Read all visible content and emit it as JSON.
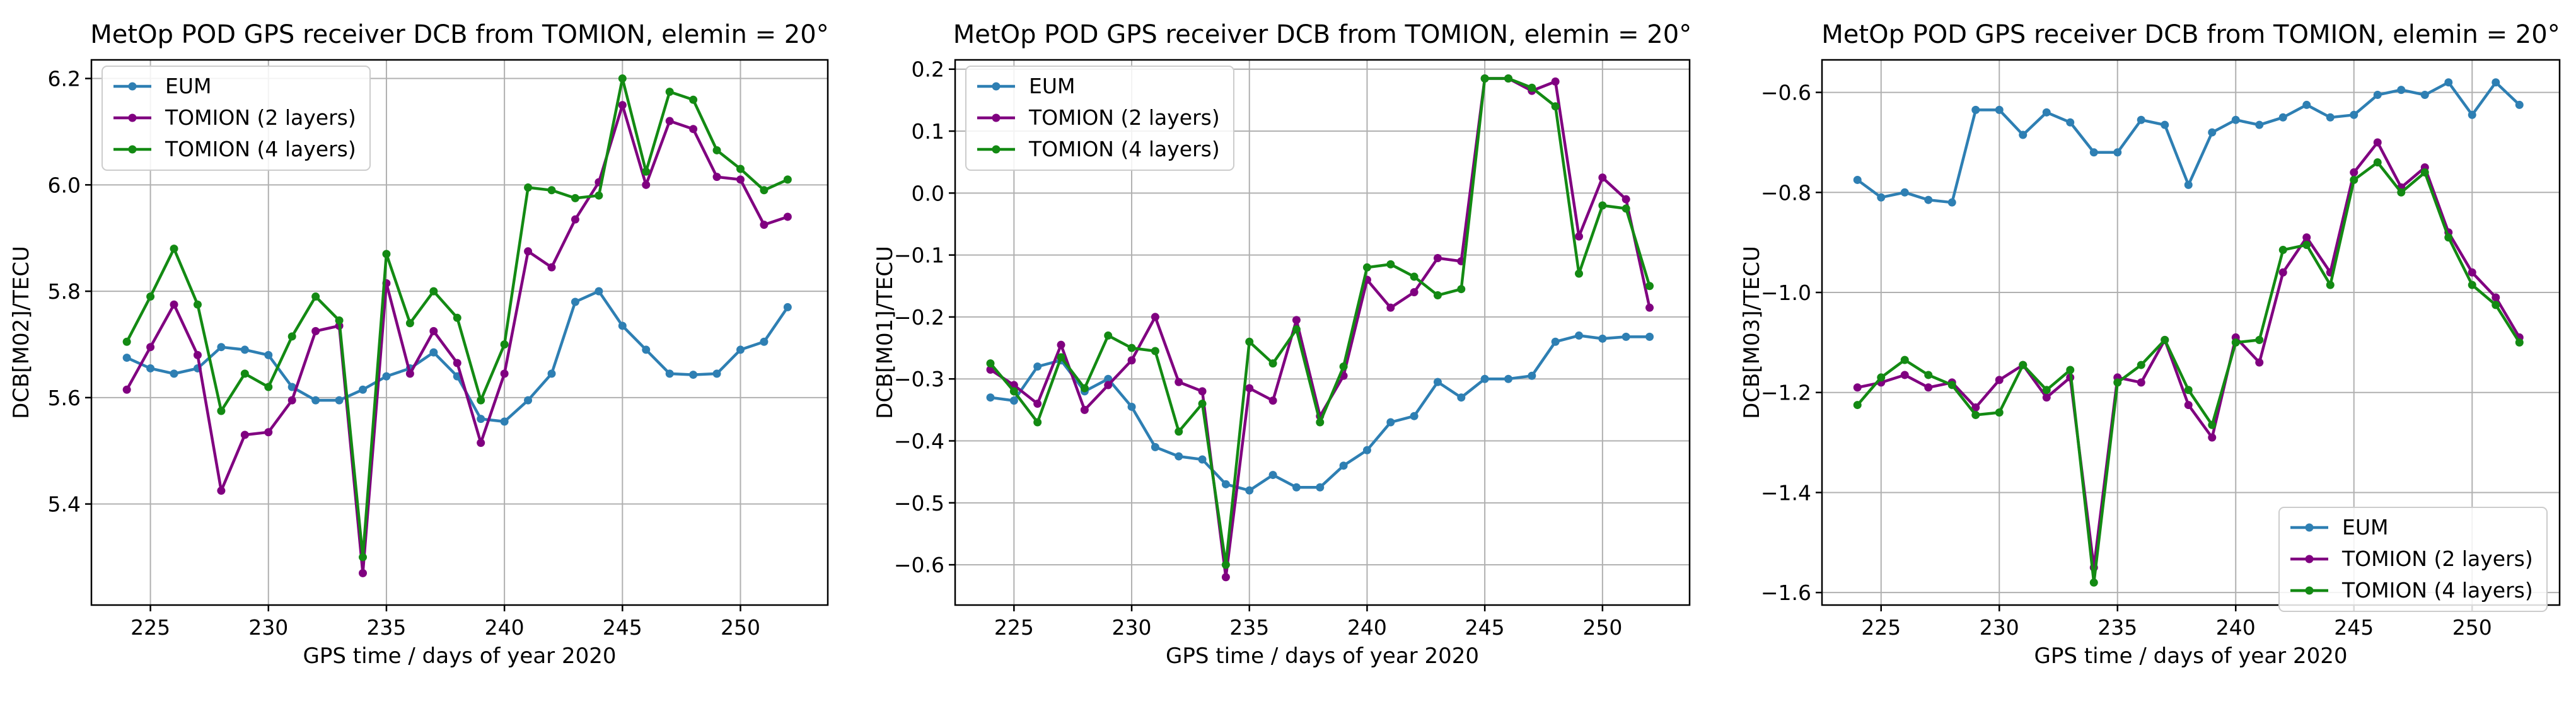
{
  "colors": {
    "EUM": "#2e7fb3",
    "TOMION (2 layers)": "#800080",
    "TOMION (4 layers)": "#138a13"
  },
  "chart_data": [
    {
      "type": "line",
      "title": "MetOp POD GPS receiver DCB from TOMION, elemin = 20°",
      "xlabel": "GPS time / days of year 2020",
      "ylabel": "DCB[M02]/TECU",
      "xlim": [
        222.5,
        253.7
      ],
      "ylim": [
        5.21,
        6.235
      ],
      "xticks": [
        225,
        230,
        235,
        240,
        245,
        250
      ],
      "yticks": [
        5.4,
        5.6,
        5.8,
        6.0,
        6.2
      ],
      "ytick_labels": [
        "5.4",
        "5.6",
        "5.8",
        "6.0",
        "6.2"
      ],
      "grid": true,
      "legend_position": "upper-left",
      "x": [
        224,
        225,
        226,
        227,
        228,
        229,
        230,
        231,
        232,
        233,
        234,
        235,
        236,
        237,
        238,
        239,
        240,
        241,
        242,
        243,
        244,
        245,
        246,
        247,
        248,
        249,
        250,
        251,
        252
      ],
      "series": [
        {
          "name": "EUM",
          "values": [
            5.675,
            5.655,
            5.645,
            5.655,
            5.695,
            5.69,
            5.68,
            5.62,
            5.595,
            5.595,
            5.615,
            5.64,
            5.655,
            5.685,
            5.64,
            5.56,
            5.555,
            5.595,
            5.645,
            5.78,
            5.8,
            5.735,
            5.69,
            5.645,
            5.643,
            5.645,
            5.69,
            5.705,
            5.77
          ]
        },
        {
          "name": "TOMION (2 layers)",
          "values": [
            5.615,
            5.695,
            5.775,
            5.68,
            5.425,
            5.53,
            5.535,
            5.595,
            5.725,
            5.735,
            5.27,
            5.815,
            5.645,
            5.725,
            5.665,
            5.515,
            5.645,
            5.875,
            5.845,
            5.935,
            6.005,
            6.15,
            6.0,
            6.12,
            6.105,
            6.015,
            6.01,
            5.925,
            5.94
          ]
        },
        {
          "name": "TOMION (4 layers)",
          "values": [
            5.705,
            5.79,
            5.88,
            5.775,
            5.575,
            5.645,
            5.62,
            5.715,
            5.79,
            5.745,
            5.3,
            5.87,
            5.74,
            5.8,
            5.75,
            5.595,
            5.7,
            5.995,
            5.99,
            5.975,
            5.98,
            6.2,
            6.025,
            6.175,
            6.16,
            6.065,
            6.03,
            5.99,
            6.01
          ]
        }
      ]
    },
    {
      "type": "line",
      "title": "MetOp POD GPS receiver DCB from TOMION, elemin = 20°",
      "xlabel": "GPS time / days of year 2020",
      "ylabel": "DCB[M01]/TECU",
      "xlim": [
        222.5,
        253.7
      ],
      "ylim": [
        -0.665,
        0.215
      ],
      "xticks": [
        225,
        230,
        235,
        240,
        245,
        250
      ],
      "yticks": [
        -0.6,
        -0.5,
        -0.4,
        -0.3,
        -0.2,
        -0.1,
        0.0,
        0.1,
        0.2
      ],
      "ytick_labels": [
        "−0.6",
        "−0.5",
        "−0.4",
        "−0.3",
        "−0.2",
        "−0.1",
        "0.0",
        "0.1",
        "0.2"
      ],
      "grid": true,
      "legend_position": "upper-left",
      "x": [
        224,
        225,
        226,
        227,
        228,
        229,
        230,
        231,
        232,
        233,
        234,
        235,
        236,
        237,
        238,
        239,
        240,
        241,
        242,
        243,
        244,
        245,
        246,
        247,
        248,
        249,
        250,
        251,
        252
      ],
      "series": [
        {
          "name": "EUM",
          "values": [
            -0.33,
            -0.335,
            -0.28,
            -0.27,
            -0.32,
            -0.3,
            -0.345,
            -0.41,
            -0.425,
            -0.43,
            -0.47,
            -0.48,
            -0.455,
            -0.475,
            -0.475,
            -0.44,
            -0.415,
            -0.37,
            -0.36,
            -0.305,
            -0.33,
            -0.3,
            -0.3,
            -0.295,
            -0.24,
            -0.23,
            -0.235,
            -0.232,
            -0.232
          ]
        },
        {
          "name": "TOMION (2 layers)",
          "values": [
            -0.285,
            -0.31,
            -0.34,
            -0.245,
            -0.35,
            -0.31,
            -0.27,
            -0.2,
            -0.305,
            -0.32,
            -0.62,
            -0.315,
            -0.335,
            -0.205,
            -0.36,
            -0.295,
            -0.14,
            -0.185,
            -0.16,
            -0.105,
            -0.11,
            0.185,
            0.185,
            0.165,
            0.18,
            -0.07,
            0.025,
            -0.01,
            -0.185
          ]
        },
        {
          "name": "TOMION (4 layers)",
          "values": [
            -0.275,
            -0.32,
            -0.37,
            -0.265,
            -0.315,
            -0.23,
            -0.25,
            -0.255,
            -0.385,
            -0.34,
            -0.6,
            -0.24,
            -0.275,
            -0.22,
            -0.37,
            -0.28,
            -0.12,
            -0.115,
            -0.135,
            -0.165,
            -0.155,
            0.185,
            0.185,
            0.17,
            0.14,
            -0.13,
            -0.02,
            -0.025,
            -0.15
          ]
        }
      ]
    },
    {
      "type": "line",
      "title": "MetOp POD GPS receiver DCB from TOMION, elemin = 20°",
      "xlabel": "GPS time / days of year 2020",
      "ylabel": "DCB[M03]/TECU",
      "xlim": [
        222.5,
        253.7
      ],
      "ylim": [
        -1.625,
        -0.535
      ],
      "xticks": [
        225,
        230,
        235,
        240,
        245,
        250
      ],
      "yticks": [
        -1.6,
        -1.4,
        -1.2,
        -1.0,
        -0.8,
        -0.6
      ],
      "ytick_labels": [
        "−1.6",
        "−1.4",
        "−1.2",
        "−1.0",
        "−0.8",
        "−0.6"
      ],
      "grid": true,
      "legend_position": "lower-right",
      "x": [
        224,
        225,
        226,
        227,
        228,
        229,
        230,
        231,
        232,
        233,
        234,
        235,
        236,
        237,
        238,
        239,
        240,
        241,
        242,
        243,
        244,
        245,
        246,
        247,
        248,
        249,
        250,
        251,
        252
      ],
      "series": [
        {
          "name": "EUM",
          "values": [
            -0.775,
            -0.81,
            -0.8,
            -0.815,
            -0.82,
            -0.635,
            -0.635,
            -0.685,
            -0.64,
            -0.66,
            -0.72,
            -0.72,
            -0.655,
            -0.665,
            -0.785,
            -0.68,
            -0.655,
            -0.665,
            -0.65,
            -0.625,
            -0.65,
            -0.645,
            -0.605,
            -0.595,
            -0.605,
            -0.58,
            -0.645,
            -0.58,
            -0.625
          ]
        },
        {
          "name": "TOMION (2 layers)",
          "values": [
            -1.19,
            -1.18,
            -1.165,
            -1.19,
            -1.18,
            -1.23,
            -1.175,
            -1.145,
            -1.21,
            -1.17,
            -1.55,
            -1.17,
            -1.18,
            -1.095,
            -1.225,
            -1.29,
            -1.09,
            -1.14,
            -0.96,
            -0.89,
            -0.96,
            -0.76,
            -0.7,
            -0.79,
            -0.75,
            -0.88,
            -0.96,
            -1.01,
            -1.09
          ]
        },
        {
          "name": "TOMION (4 layers)",
          "values": [
            -1.225,
            -1.17,
            -1.135,
            -1.165,
            -1.185,
            -1.245,
            -1.24,
            -1.145,
            -1.195,
            -1.155,
            -1.58,
            -1.18,
            -1.145,
            -1.095,
            -1.195,
            -1.265,
            -1.1,
            -1.095,
            -0.915,
            -0.905,
            -0.985,
            -0.775,
            -0.74,
            -0.8,
            -0.76,
            -0.89,
            -0.985,
            -1.025,
            -1.1
          ]
        }
      ]
    }
  ]
}
